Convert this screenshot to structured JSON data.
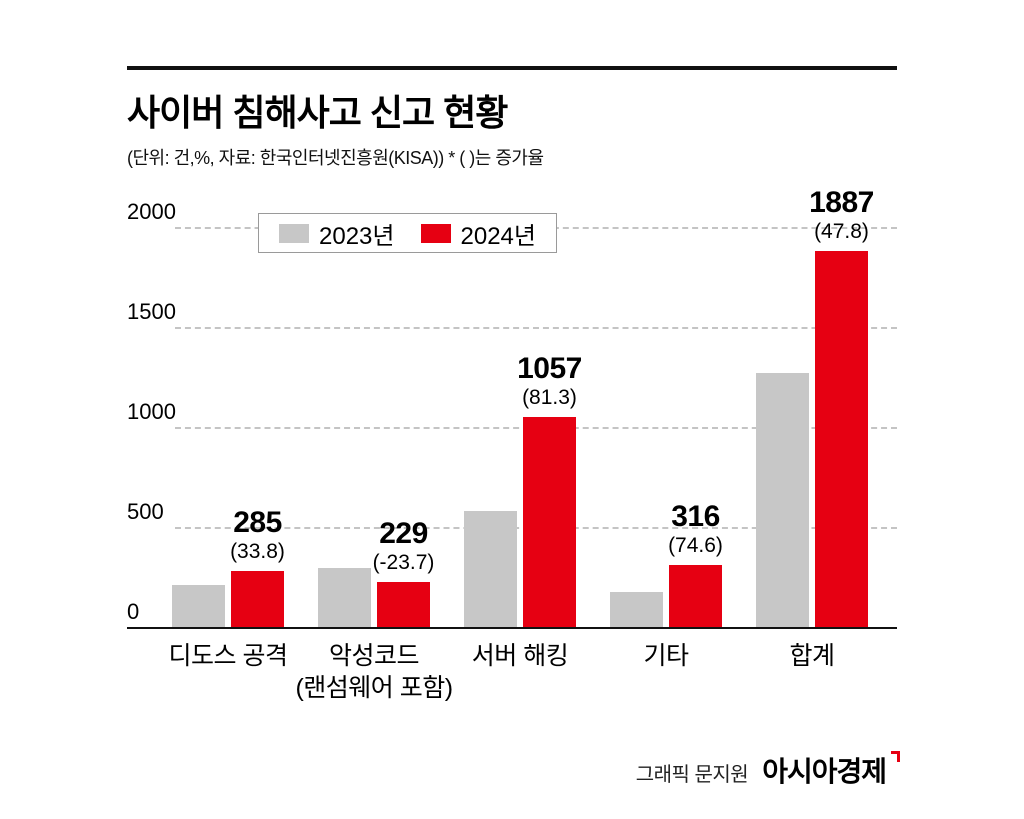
{
  "header": {
    "title": "사이버 침해사고 신고 현황",
    "subtitle": "(단위: 건,%, 자료: 한국인터넷진흥원(KISA))  * ( )는 증가율"
  },
  "legend": {
    "items": [
      {
        "label": "2023년",
        "color": "#c7c7c7"
      },
      {
        "label": "2024년",
        "color": "#e60012"
      }
    ]
  },
  "footer": {
    "credit": "그래픽 문지원",
    "logo": "아시아경제"
  },
  "chart_data": {
    "type": "bar",
    "title": "사이버 침해사고 신고 현황",
    "unit_note": "(단위: 건,%, 자료: 한국인터넷진흥원(KISA))  * ( )는 증가율",
    "categories": [
      {
        "label": "디도스 공격",
        "sublabel": ""
      },
      {
        "label": "악성코드",
        "sublabel": "(랜섬웨어 포함)"
      },
      {
        "label": "서버 해킹",
        "sublabel": ""
      },
      {
        "label": "기타",
        "sublabel": ""
      },
      {
        "label": "합계",
        "sublabel": ""
      }
    ],
    "series": [
      {
        "name": "2023년",
        "color": "#c7c7c7",
        "values": [
          213,
          300,
          583,
          181,
          1277
        ]
      },
      {
        "name": "2024년",
        "color": "#e60012",
        "values": [
          285,
          229,
          1057,
          316,
          1887
        ]
      }
    ],
    "value_labels_2024": [
      "285",
      "229",
      "1057",
      "316",
      "1887"
    ],
    "growth_labels_2024": [
      "(33.8)",
      "(-23.7)",
      "(81.3)",
      "(74.6)",
      "(47.8)"
    ],
    "growth_pct_2024": [
      33.8,
      -23.7,
      81.3,
      74.6,
      47.8
    ],
    "ylim": [
      0,
      2000
    ],
    "y_ticks": [
      0,
      500,
      1000,
      1500,
      2000
    ],
    "grid": "dashed-horizontal",
    "legend_position": "top-inside"
  }
}
